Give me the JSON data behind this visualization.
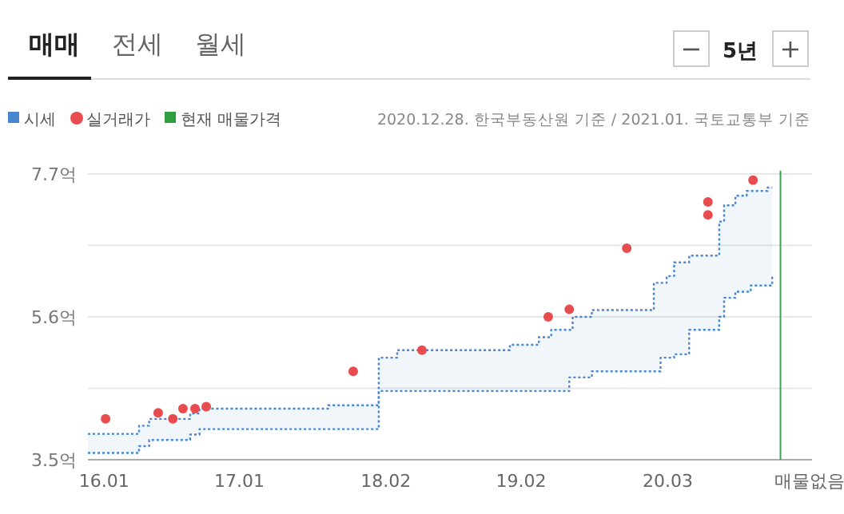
{
  "chart_data": {
    "type": "step",
    "annotations": [
      "매매",
      "전세",
      "월세",
      "−",
      "5년",
      "+",
      "2020.12.28. 한국부동산원 기준 / 2021.01. 국토교통부 기준"
    ],
    "legend": "top left",
    "grid": "y",
    "line_style": "dotted",
    "xlim": [
      "2015-11-18",
      "2021-03-25"
    ],
    "xticks": [
      {
        "value": "2016-01",
        "label": "16.01"
      },
      {
        "value": "2017-01",
        "label": "17.01"
      },
      {
        "value": "2018-02",
        "label": "18.02"
      },
      {
        "value": "2019-02",
        "label": "19.02"
      },
      {
        "value": "2020-03",
        "label": "20.03"
      }
    ],
    "ylim": [
      3.5,
      7.7
    ],
    "yticks": [
      {
        "value": 3.5,
        "label": "3.5억"
      },
      {
        "value": 4.55,
        "label": null
      },
      {
        "value": 5.6,
        "label": "5.6억"
      },
      {
        "value": 6.65,
        "label": null
      },
      {
        "value": 7.7,
        "label": "7.7억"
      }
    ],
    "ref_lines": [
      {
        "axis": "x",
        "value": "2021-01-01",
        "label": "매물없음",
        "color": "#3aa34a"
      }
    ],
    "series": [
      {
        "name": "시세",
        "type": "step",
        "color": "#4a86cf",
        "x": [
          "2015-11-18",
          "2016-04-04",
          "2016-05-01",
          "2016-08-20",
          "2016-09-15",
          "2017-08-27",
          "2018-01-12",
          "2018-03-01",
          "2019-01-01",
          "2019-03-18",
          "2019-04-21",
          "2019-06-09",
          "2019-06-18",
          "2019-08-09",
          "2020-01-24",
          "2020-02-12",
          "2020-02-28",
          "2020-03-18",
          "2020-04-28",
          "2020-07-18",
          "2020-08-01",
          "2020-09-01",
          "2020-10-01",
          "2020-10-12",
          "2020-11-27",
          "2020-12-09"
        ],
        "values": [
          3.88,
          4.0,
          4.1,
          4.18,
          4.25,
          4.3,
          5.0,
          5.11,
          5.19,
          5.3,
          5.41,
          5.41,
          5.6,
          5.7,
          6.1,
          6.1,
          6.2,
          6.4,
          6.5,
          7.0,
          7.24,
          7.38,
          7.45,
          7.45,
          7.5,
          7.5
        ],
        "upper": [
          3.88,
          4.0,
          4.1,
          4.18,
          4.25,
          4.3,
          5.0,
          5.11,
          5.19,
          5.3,
          5.41,
          5.41,
          5.6,
          5.7,
          6.1,
          6.1,
          6.2,
          6.4,
          6.5,
          7.0,
          7.24,
          7.38,
          7.45,
          7.45,
          7.5,
          7.5
        ],
        "lower": [
          3.6,
          3.7,
          3.79,
          3.87,
          3.95,
          3.95,
          4.51,
          4.51,
          4.51,
          4.51,
          4.51,
          4.71,
          4.71,
          4.8,
          4.8,
          5.0,
          5.0,
          5.05,
          5.41,
          5.6,
          5.88,
          5.97,
          5.97,
          6.06,
          6.06,
          6.2
        ]
      },
      {
        "color": "#4a86cf",
        "x": [
          "2015-11-18",
          "2016-04-04",
          "2016-05-01",
          "2016-08-20",
          "2016-09-15",
          "2017-08-27",
          "2018-01-12",
          "2018-03-01",
          "2019-01-01",
          "2019-03-18",
          "2019-04-21",
          "2019-06-09",
          "2019-06-18",
          "2019-08-09",
          "2020-01-24",
          "2020-02-12",
          "2020-02-28",
          "2020-03-18",
          "2020-04-28",
          "2020-07-18",
          "2020-08-01",
          "2020-09-01",
          "2020-10-01",
          "2020-10-12",
          "2020-11-27",
          "2020-12-09"
        ],
        "values": [
          3.6,
          3.7,
          3.79,
          3.87,
          3.95,
          3.95,
          4.51,
          4.51,
          4.51,
          4.51,
          4.51,
          4.71,
          4.71,
          4.8,
          4.8,
          5.0,
          5.0,
          5.05,
          5.41,
          5.6,
          5.88,
          5.97,
          5.97,
          6.06,
          6.06,
          6.2
        ]
      },
      {
        "name": "실거래가",
        "type": "scatter",
        "marker": "circle",
        "color": "#e84c4f",
        "x": [
          "2016-01-05",
          "2016-05-25",
          "2016-07-04",
          "2016-08-01",
          "2016-09-03",
          "2016-10-03",
          "2017-11-04",
          "2018-05-07",
          "2019-04-13",
          "2019-06-09",
          "2019-11-12",
          "2020-06-18",
          "2020-06-18",
          "2020-10-18"
        ],
        "values": [
          4.1,
          4.19,
          4.1,
          4.25,
          4.25,
          4.28,
          4.8,
          5.11,
          5.6,
          5.71,
          6.61,
          7.29,
          7.1,
          7.61
        ]
      },
      {
        "name": "현재 매물가격",
        "type": "scatter",
        "marker": "square",
        "color": "#2e9e3e"
      }
    ]
  }
}
